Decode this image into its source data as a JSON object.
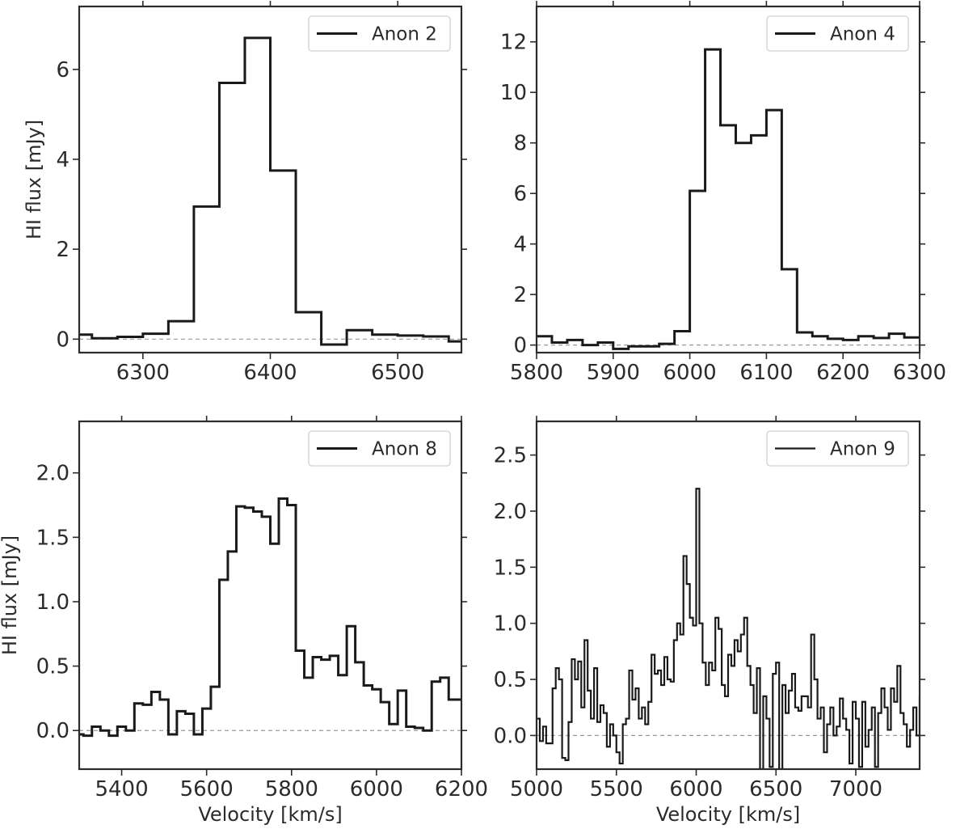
{
  "chart_data": [
    {
      "type": "line",
      "drawstyle": "step",
      "legend": "Anon 2",
      "legend_position": "top-right",
      "xlabel": "",
      "ylabel": "HI flux [mJy]",
      "xlim": [
        6250,
        6550
      ],
      "ylim": [
        -0.3,
        7.4
      ],
      "xticks": [
        6300,
        6400,
        6500
      ],
      "yticks": [
        0,
        2,
        4,
        6
      ],
      "baseline": 0,
      "x": [
        6250,
        6260,
        6280,
        6300,
        6320,
        6340,
        6360,
        6380,
        6400,
        6420,
        6440,
        6460,
        6480,
        6500,
        6520,
        6540,
        6550
      ],
      "y": [
        0.1,
        0.02,
        0.05,
        0.12,
        0.4,
        2.95,
        5.7,
        6.7,
        3.75,
        0.6,
        -0.12,
        0.2,
        0.1,
        0.08,
        0.06,
        -0.05,
        -0.05
      ]
    },
    {
      "type": "line",
      "drawstyle": "step",
      "legend": "Anon 4",
      "legend_position": "top-right",
      "xlabel": "",
      "ylabel": "",
      "xlim": [
        5800,
        6300
      ],
      "ylim": [
        -0.3,
        13.4
      ],
      "xticks": [
        5800,
        5900,
        6000,
        6100,
        6200,
        6300
      ],
      "yticks": [
        0,
        2,
        4,
        6,
        8,
        10,
        12
      ],
      "baseline": 0,
      "x": [
        5800,
        5820,
        5840,
        5860,
        5880,
        5900,
        5920,
        5940,
        5960,
        5980,
        6000,
        6020,
        6040,
        6060,
        6080,
        6100,
        6120,
        6140,
        6160,
        6180,
        6200,
        6220,
        6240,
        6260,
        6280,
        6300
      ],
      "y": [
        0.35,
        0.1,
        0.2,
        0.0,
        0.1,
        -0.15,
        -0.05,
        -0.05,
        0.05,
        0.55,
        6.1,
        11.7,
        8.7,
        8.0,
        8.3,
        9.3,
        3.0,
        0.5,
        0.35,
        0.25,
        0.2,
        0.35,
        0.28,
        0.45,
        0.3,
        0.3
      ]
    },
    {
      "type": "line",
      "drawstyle": "step",
      "legend": "Anon 8",
      "legend_position": "top-right",
      "xlabel": "Velocity [km/s]",
      "ylabel": "HI flux [mJy]",
      "xlim": [
        5300,
        6200
      ],
      "ylim": [
        -0.3,
        2.4
      ],
      "xticks": [
        5400,
        5600,
        5800,
        6000,
        6200
      ],
      "yticks": [
        0.0,
        0.5,
        1.0,
        1.5,
        2.0
      ],
      "baseline": 0,
      "x": [
        5300,
        5310,
        5330,
        5350,
        5370,
        5390,
        5410,
        5430,
        5450,
        5470,
        5490,
        5510,
        5530,
        5550,
        5570,
        5590,
        5610,
        5630,
        5650,
        5670,
        5690,
        5710,
        5730,
        5750,
        5770,
        5790,
        5810,
        5830,
        5850,
        5870,
        5890,
        5910,
        5930,
        5950,
        5970,
        5990,
        6010,
        6030,
        6050,
        6070,
        6090,
        6110,
        6130,
        6150,
        6170,
        6190,
        6200
      ],
      "y": [
        -0.03,
        -0.04,
        0.03,
        0.0,
        -0.04,
        0.03,
        0.0,
        0.21,
        0.2,
        0.3,
        0.24,
        -0.03,
        0.15,
        0.13,
        -0.03,
        0.17,
        0.34,
        1.17,
        1.39,
        1.74,
        1.73,
        1.7,
        1.66,
        1.45,
        1.8,
        1.75,
        0.62,
        0.41,
        0.57,
        0.55,
        0.58,
        0.43,
        0.81,
        0.53,
        0.35,
        0.32,
        0.22,
        0.05,
        0.31,
        0.03,
        0.02,
        0.0,
        0.38,
        0.41,
        0.24,
        0.24,
        0.24
      ]
    },
    {
      "type": "line",
      "drawstyle": "step",
      "legend": "Anon 9",
      "legend_position": "top-right",
      "xlabel": "Velocity [km/s]",
      "ylabel": "",
      "xlim": [
        5000,
        7400
      ],
      "ylim": [
        -0.3,
        2.8
      ],
      "xticks": [
        5000,
        5500,
        6000,
        6500,
        7000
      ],
      "yticks": [
        0.0,
        0.5,
        1.0,
        1.5,
        2.0,
        2.5
      ],
      "baseline": 0,
      "x": [
        5000,
        5020,
        5040,
        5060,
        5080,
        5100,
        5120,
        5140,
        5160,
        5180,
        5200,
        5220,
        5240,
        5260,
        5280,
        5300,
        5320,
        5340,
        5360,
        5380,
        5400,
        5420,
        5440,
        5460,
        5480,
        5500,
        5520,
        5540,
        5560,
        5580,
        5600,
        5620,
        5640,
        5660,
        5680,
        5700,
        5720,
        5740,
        5760,
        5780,
        5800,
        5820,
        5840,
        5860,
        5880,
        5900,
        5920,
        5940,
        5960,
        5980,
        6000,
        6020,
        6040,
        6060,
        6080,
        6100,
        6120,
        6140,
        6160,
        6180,
        6200,
        6220,
        6240,
        6260,
        6280,
        6300,
        6320,
        6340,
        6360,
        6380,
        6400,
        6420,
        6440,
        6460,
        6480,
        6500,
        6520,
        6540,
        6560,
        6580,
        6600,
        6620,
        6640,
        6660,
        6680,
        6700,
        6720,
        6740,
        6760,
        6780,
        6800,
        6820,
        6840,
        6860,
        6880,
        6900,
        6920,
        6940,
        6960,
        6980,
        7000,
        7020,
        7040,
        7060,
        7080,
        7100,
        7120,
        7140,
        7160,
        7180,
        7200,
        7220,
        7240,
        7260,
        7280,
        7300,
        7320,
        7340,
        7360,
        7380,
        7400
      ],
      "y": [
        0.15,
        -0.05,
        0.08,
        -0.07,
        -0.07,
        0.42,
        0.6,
        0.5,
        -0.2,
        -0.22,
        0.12,
        0.68,
        0.5,
        0.66,
        0.25,
        0.85,
        0.4,
        0.15,
        0.6,
        0.12,
        0.27,
        0.2,
        -0.1,
        0.1,
        0.0,
        -0.15,
        -0.25,
        0.1,
        0.15,
        0.58,
        0.32,
        0.42,
        0.15,
        0.25,
        0.1,
        0.3,
        0.72,
        0.55,
        0.58,
        0.45,
        0.7,
        0.5,
        0.48,
        0.85,
        1.0,
        0.9,
        1.6,
        1.35,
        1.05,
        0.98,
        2.2,
        1.0,
        0.65,
        0.45,
        0.65,
        0.58,
        1.05,
        0.95,
        0.45,
        0.35,
        0.72,
        0.62,
        0.85,
        0.75,
        0.9,
        1.05,
        0.62,
        0.45,
        0.2,
        0.6,
        -0.3,
        0.35,
        0.15,
        -0.28,
        0.55,
        0.65,
        -0.3,
        0.45,
        0.2,
        0.4,
        0.55,
        0.25,
        0.22,
        0.35,
        0.35,
        0.25,
        0.9,
        0.5,
        0.15,
        0.25,
        -0.15,
        0.1,
        0.25,
        0.0,
        0.08,
        0.33,
        0.15,
        0.05,
        -0.25,
        0.3,
        0.15,
        -0.28,
        0.3,
        -0.1,
        0.05,
        0.25,
        -0.28,
        0.2,
        0.42,
        0.25,
        0.05,
        0.42,
        0.3,
        0.62,
        0.2,
        0.1,
        -0.1,
        0.05,
        0.25,
        0.0,
        0.35
      ]
    }
  ]
}
